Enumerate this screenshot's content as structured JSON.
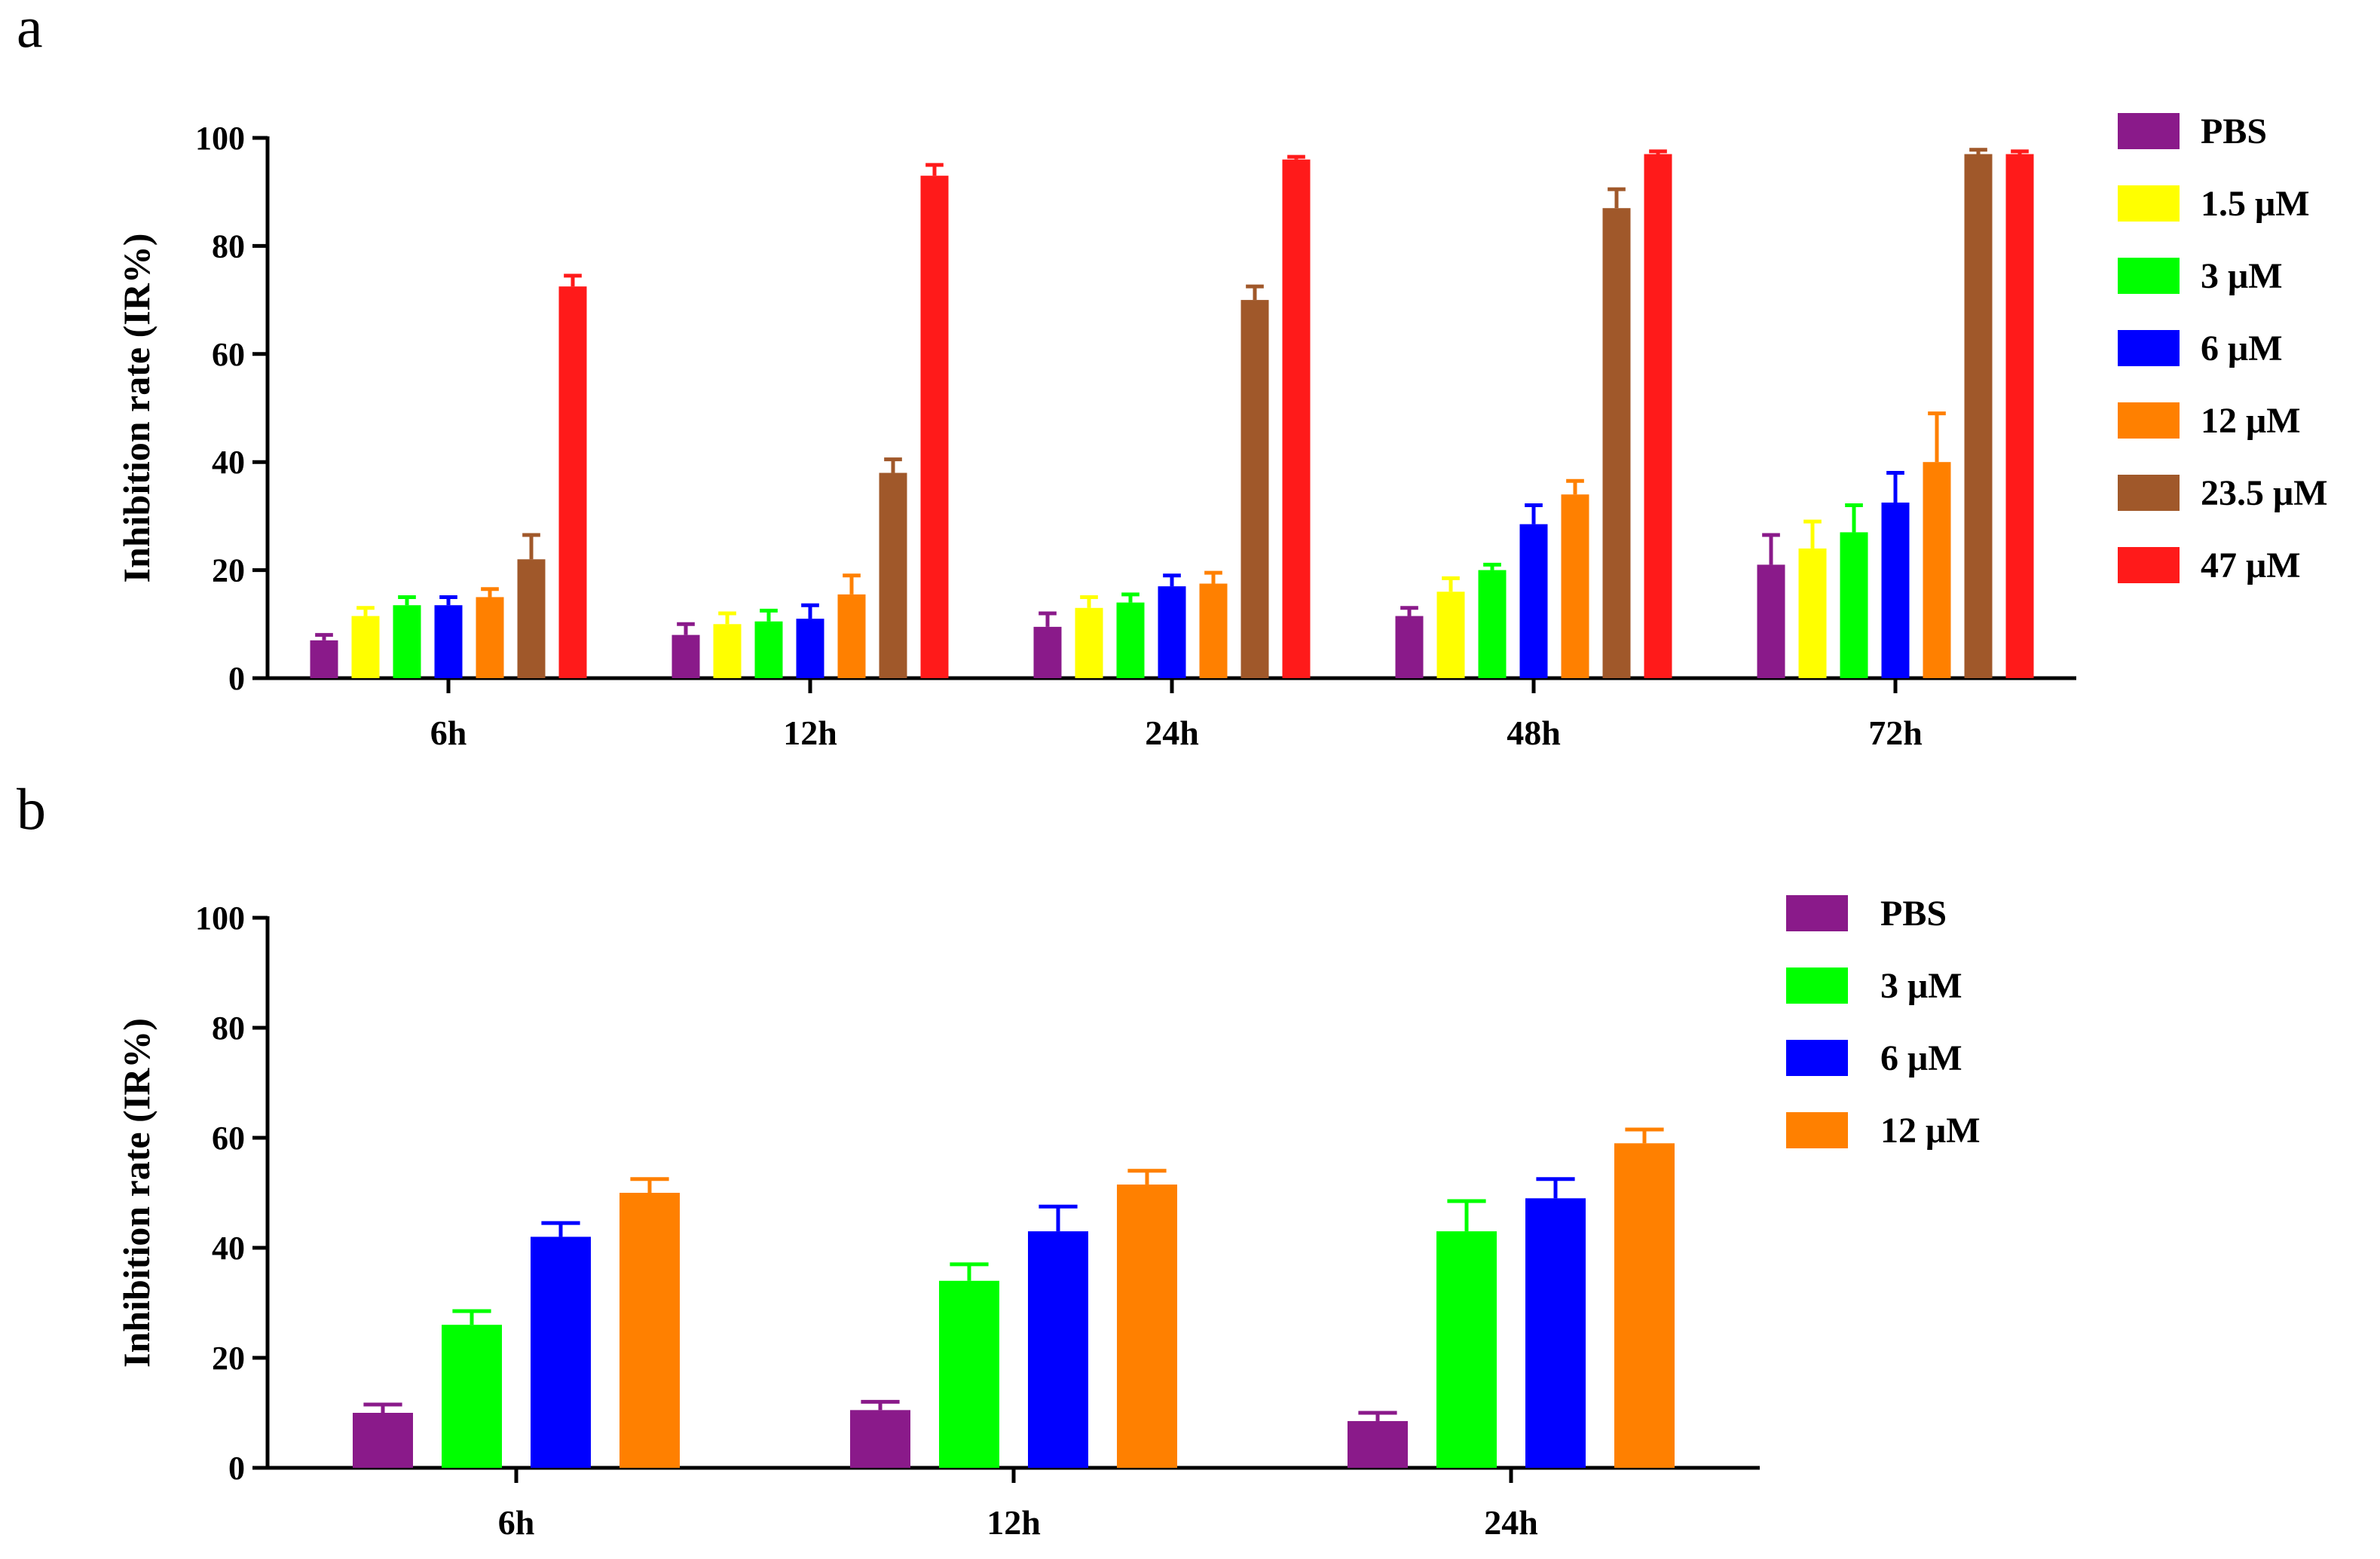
{
  "colors": {
    "PBS": "#8a1a8a",
    "1.5 μM": "#ffff00",
    "3 μM": "#00ff00",
    "6 μM": "#0000ff",
    "12 μM": "#ff8000",
    "23.5 μM": "#a0582a",
    "47 μM": "#ff1a1a",
    "axis": "#000000"
  },
  "chart_data": [
    {
      "panel_label": "a",
      "type": "bar",
      "title": "",
      "xlabel": "",
      "ylabel": "Inhibition rate (IR%)",
      "ylim": [
        0,
        100
      ],
      "yticks": [
        "0",
        "20",
        "40",
        "60",
        "80",
        "100"
      ],
      "categories": [
        "6h",
        "12h",
        "24h",
        "48h",
        "72h"
      ],
      "legend_position": "right",
      "series": [
        {
          "name": "PBS",
          "values": [
            7,
            8,
            9.5,
            11.5,
            21
          ],
          "errors": [
            1,
            2,
            2.5,
            1.5,
            5.5
          ]
        },
        {
          "name": "1.5 μM",
          "values": [
            11.5,
            10,
            13,
            16,
            24
          ],
          "errors": [
            1.5,
            2,
            2,
            2.5,
            5
          ]
        },
        {
          "name": "3 μM",
          "values": [
            13.5,
            10.5,
            14,
            20,
            27
          ],
          "errors": [
            1.5,
            2,
            1.5,
            1,
            5
          ]
        },
        {
          "name": "6 μM",
          "values": [
            13.5,
            11,
            17,
            28.5,
            32.5
          ],
          "errors": [
            1.5,
            2.5,
            2,
            3.5,
            5.5
          ]
        },
        {
          "name": "12 μM",
          "values": [
            15,
            15.5,
            17.5,
            34,
            40
          ],
          "errors": [
            1.5,
            3.5,
            2,
            2.5,
            9
          ]
        },
        {
          "name": "23.5 μM",
          "values": [
            22,
            38,
            70,
            87,
            97
          ],
          "errors": [
            4.5,
            2.5,
            2.5,
            3.5,
            0.8
          ]
        },
        {
          "name": "47 μM",
          "values": [
            72.5,
            93,
            96,
            97,
            97
          ],
          "errors": [
            2,
            2,
            0.5,
            0.5,
            0.5
          ]
        }
      ]
    },
    {
      "panel_label": "b",
      "type": "bar",
      "title": "",
      "xlabel": "",
      "ylabel": "Inhibition rate (IR%)",
      "ylim": [
        0,
        100
      ],
      "yticks": [
        "0",
        "20",
        "40",
        "60",
        "80",
        "100"
      ],
      "categories": [
        "6h",
        "12h",
        "24h"
      ],
      "legend_position": "right",
      "series": [
        {
          "name": "PBS",
          "values": [
            10,
            10.5,
            8.5
          ],
          "errors": [
            1.5,
            1.5,
            1.5
          ]
        },
        {
          "name": "3 μM",
          "values": [
            26,
            34,
            43
          ],
          "errors": [
            2.5,
            3,
            5.5
          ]
        },
        {
          "name": "6 μM",
          "values": [
            42,
            43,
            49
          ],
          "errors": [
            2.5,
            4.5,
            3.5
          ]
        },
        {
          "name": "12 μM",
          "values": [
            50,
            51.5,
            59
          ],
          "errors": [
            2.5,
            2.5,
            2.5
          ]
        }
      ]
    }
  ]
}
